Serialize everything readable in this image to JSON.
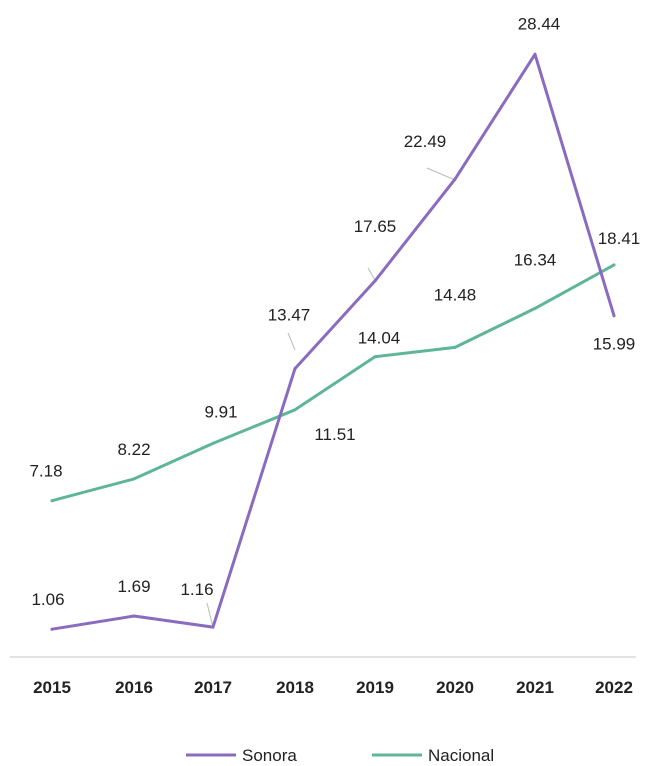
{
  "chart_data": {
    "type": "line",
    "x": [
      "2015",
      "2016",
      "2017",
      "2018",
      "2019",
      "2020",
      "2021",
      "2022"
    ],
    "series": [
      {
        "name": "Sonora",
        "color": "#8A6BBE",
        "values": [
          1.06,
          1.69,
          1.16,
          13.47,
          17.65,
          22.49,
          28.44,
          15.99
        ],
        "labels": [
          "1.06",
          "1.69",
          "1.16",
          "13.47",
          "17.65",
          "22.49",
          "28.44",
          "15.99"
        ]
      },
      {
        "name": "Nacional",
        "color": "#5FB597",
        "values": [
          7.18,
          8.22,
          9.91,
          11.51,
          14.04,
          14.48,
          16.34,
          18.41
        ],
        "labels": [
          "7.18",
          "8.22",
          "9.91",
          "11.51",
          "14.04",
          "14.48",
          "16.34",
          "18.41"
        ]
      }
    ],
    "ylim": [
      0,
      30
    ],
    "grid": false,
    "legend_position": "bottom-center",
    "title": "",
    "xlabel": "",
    "ylabel": ""
  }
}
